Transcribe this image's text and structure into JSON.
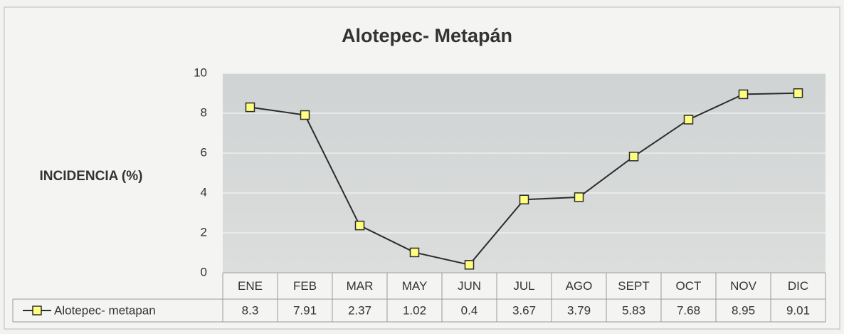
{
  "chart_data": {
    "type": "line",
    "title": "Alotepec- Metapán",
    "y_label": "INCIDENCIA (%)",
    "categories": [
      "ENE",
      "FEB",
      "MAR",
      "MAY",
      "JUN",
      "JUL",
      "AGO",
      "SEPT",
      "OCT",
      "NOV",
      "DIC"
    ],
    "series": [
      {
        "name": "Alotepec- metapan",
        "color": "#2b2b2b",
        "marker_color": "#ffff80",
        "values": [
          8.3,
          7.91,
          2.37,
          1.02,
          0.4,
          3.67,
          3.79,
          5.83,
          7.68,
          8.95,
          9.01
        ]
      }
    ],
    "ylim": [
      0,
      10
    ],
    "yticks": [
      0,
      2,
      4,
      6,
      8,
      10
    ],
    "grid": true,
    "data_table": true
  }
}
